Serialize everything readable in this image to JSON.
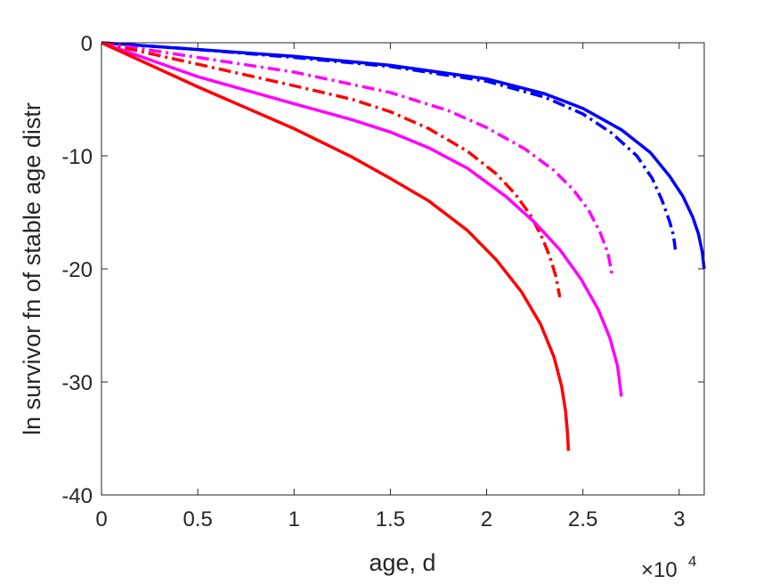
{
  "chart_data": {
    "type": "line",
    "title": "",
    "xlabel": "age, d",
    "ylabel": "ln survivor fn of stable age distr",
    "x_exponent_label": "×10",
    "x_exponent_power": "4",
    "xlim": [
      0,
      31300
    ],
    "ylim": [
      -40,
      0
    ],
    "x_ticks": [
      0,
      5000,
      10000,
      15000,
      20000,
      25000,
      30000
    ],
    "x_tick_labels": [
      "0",
      "0.5",
      "1",
      "1.5",
      "2",
      "2.5",
      "3"
    ],
    "y_ticks": [
      0,
      -10,
      -20,
      -30,
      -40
    ],
    "y_tick_labels": [
      "0",
      "-10",
      "-20",
      "-30",
      "-40"
    ],
    "grid": false,
    "series": [
      {
        "color": "#0000ff",
        "dash": "solid",
        "x": [
          0,
          5000,
          10000,
          15000,
          20000,
          23000,
          25000,
          27000,
          28500,
          29500,
          30200,
          30700,
          31000,
          31200,
          31300
        ],
        "y": [
          0,
          -0.6,
          -1.2,
          -2.0,
          -3.2,
          -4.5,
          -5.8,
          -7.7,
          -9.7,
          -11.8,
          -13.6,
          -15.4,
          -16.9,
          -18.5,
          -20.0
        ]
      },
      {
        "color": "#0000ff",
        "dash": "dashdot",
        "x": [
          0,
          5000,
          10000,
          15000,
          20000,
          23000,
          25000,
          26500,
          27800,
          28600,
          29100,
          29500,
          29700,
          29800
        ],
        "y": [
          0,
          -0.6,
          -1.3,
          -2.1,
          -3.4,
          -4.8,
          -6.3,
          -8.0,
          -10.0,
          -12.0,
          -13.9,
          -15.8,
          -17.0,
          -18.3
        ]
      },
      {
        "color": "#ff00ff",
        "dash": "dashdot",
        "x": [
          0,
          5000,
          10000,
          15000,
          18000,
          20000,
          22000,
          23500,
          24500,
          25300,
          25900,
          26300,
          26500
        ],
        "y": [
          0,
          -1.3,
          -2.6,
          -4.4,
          -6.0,
          -7.5,
          -9.4,
          -11.3,
          -13.0,
          -14.8,
          -16.8,
          -18.6,
          -20.4
        ]
      },
      {
        "color": "#ff0000",
        "dash": "dashdot",
        "x": [
          0,
          5000,
          10000,
          13000,
          15000,
          17000,
          19000,
          20500,
          21500,
          22300,
          22900,
          23300,
          23600,
          23800
        ],
        "y": [
          0,
          -1.9,
          -3.8,
          -5.0,
          -6.1,
          -7.6,
          -9.6,
          -11.6,
          -13.4,
          -15.3,
          -17.3,
          -19.0,
          -20.7,
          -22.5
        ]
      },
      {
        "color": "#ff00ff",
        "dash": "solid",
        "x": [
          0,
          5000,
          10000,
          13000,
          15000,
          17000,
          19000,
          21000,
          22500,
          23800,
          24900,
          25800,
          26400,
          26800,
          27000
        ],
        "y": [
          0,
          -3.0,
          -5.4,
          -6.8,
          -7.9,
          -9.3,
          -11.1,
          -13.6,
          -15.9,
          -18.3,
          -20.9,
          -23.6,
          -26.1,
          -28.6,
          -31.3
        ]
      },
      {
        "color": "#ff0000",
        "dash": "solid",
        "x": [
          0,
          5000,
          10000,
          13000,
          15000,
          17000,
          19000,
          20500,
          21800,
          22800,
          23500,
          23900,
          24100,
          24200,
          24250
        ],
        "y": [
          0,
          -3.9,
          -7.6,
          -10.1,
          -12.0,
          -14.0,
          -16.6,
          -19.2,
          -22.0,
          -24.9,
          -27.8,
          -30.4,
          -32.6,
          -34.5,
          -36.1
        ]
      }
    ]
  }
}
